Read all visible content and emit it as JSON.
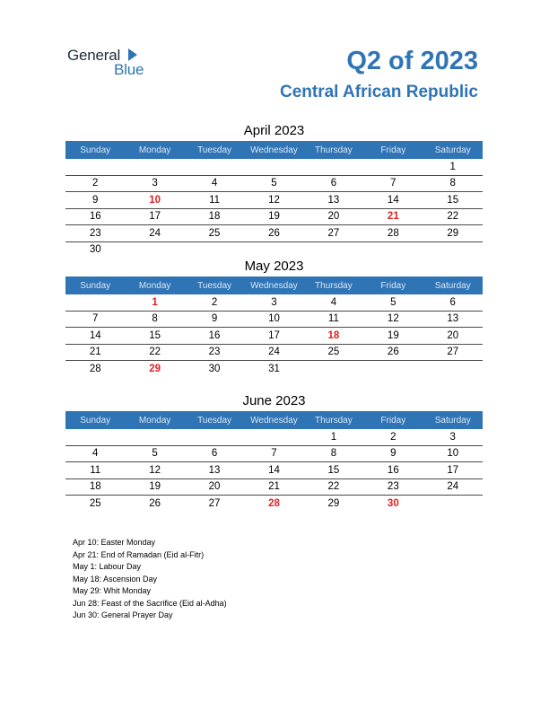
{
  "logo": {
    "general": "General",
    "blue": "Blue"
  },
  "title": "Q2 of 2023",
  "country": "Central African Republic",
  "colors": {
    "accent": "#2f74b5",
    "holiday": "#e02020"
  },
  "weekdays": [
    "Sunday",
    "Monday",
    "Tuesday",
    "Wednesday",
    "Thursday",
    "Friday",
    "Saturday"
  ],
  "months": [
    {
      "title": "April 2023",
      "weeks": [
        [
          "",
          "",
          "",
          "",
          "",
          "",
          "1"
        ],
        [
          "2",
          "3",
          "4",
          "5",
          "6",
          "7",
          "8"
        ],
        [
          "9",
          "10",
          "11",
          "12",
          "13",
          "14",
          "15"
        ],
        [
          "16",
          "17",
          "18",
          "19",
          "20",
          "21",
          "22"
        ],
        [
          "23",
          "24",
          "25",
          "26",
          "27",
          "28",
          "29"
        ],
        [
          "30",
          "",
          "",
          "",
          "",
          "",
          ""
        ]
      ],
      "holidays": [
        "10",
        "21"
      ]
    },
    {
      "title": "May 2023",
      "weeks": [
        [
          "",
          "1",
          "2",
          "3",
          "4",
          "5",
          "6"
        ],
        [
          "7",
          "8",
          "9",
          "10",
          "11",
          "12",
          "13"
        ],
        [
          "14",
          "15",
          "16",
          "17",
          "18",
          "19",
          "20"
        ],
        [
          "21",
          "22",
          "23",
          "24",
          "25",
          "26",
          "27"
        ],
        [
          "28",
          "29",
          "30",
          "31",
          "",
          "",
          ""
        ]
      ],
      "holidays": [
        "1",
        "18",
        "29"
      ]
    },
    {
      "title": "June 2023",
      "weeks": [
        [
          "",
          "",
          "",
          "",
          "1",
          "2",
          "3"
        ],
        [
          "4",
          "5",
          "6",
          "7",
          "8",
          "9",
          "10"
        ],
        [
          "11",
          "12",
          "13",
          "14",
          "15",
          "16",
          "17"
        ],
        [
          "18",
          "19",
          "20",
          "21",
          "22",
          "23",
          "24"
        ],
        [
          "25",
          "26",
          "27",
          "28",
          "29",
          "30",
          ""
        ]
      ],
      "holidays": [
        "28",
        "30"
      ]
    }
  ],
  "notes": [
    "Apr 10: Easter Monday",
    "Apr 21: End of Ramadan (Eid al-Fitr)",
    "May 1: Labour Day",
    "May 18: Ascension Day",
    "May 29: Whit Monday",
    "Jun 28: Feast of the Sacrifice (Eid al-Adha)",
    "Jun 30: General Prayer Day"
  ]
}
